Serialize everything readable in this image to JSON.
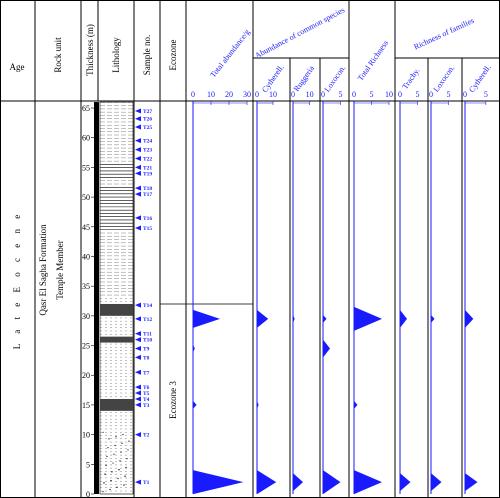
{
  "headers": {
    "age": "Age",
    "rock_unit": "Rock unit",
    "thickness": "Thickness (m)",
    "lithology": "Lithology",
    "sample_no": "Sample no.",
    "ecozone": "Ecozone",
    "total_abundance": "Total abundance/g",
    "abundance_common": "Abundance of common species",
    "cytherell_a": "Cytherell.",
    "ruggeria": "Ruggeria",
    "loxocon_a": "Loxocon.",
    "total_richness": "Total Richness",
    "richness_families": "Richness of families",
    "trachy": "Trachy.",
    "loxocon_b": "Loxocon.",
    "cytherell_b": "Cytherell."
  },
  "column_labels": {
    "age_value": "L a t e   E o c e n e",
    "formation": "Qasr El Sagha Formation",
    "member": "Temple Member",
    "ecozone_value": "Ecozone 3"
  },
  "colors": {
    "blue": "#1a1aff",
    "black": "#000000"
  },
  "chart_data": {
    "type": "area",
    "title": "",
    "y_axis": {
      "label": "Thickness (m)",
      "range": [
        0,
        66
      ],
      "ticks": [
        0,
        5,
        10,
        15,
        20,
        25,
        30,
        35,
        40,
        45,
        50,
        55,
        60,
        65
      ]
    },
    "samples": [
      {
        "id": "T1",
        "depth": 2
      },
      {
        "id": "T2",
        "depth": 10
      },
      {
        "id": "T3",
        "depth": 15
      },
      {
        "id": "T4",
        "depth": 16
      },
      {
        "id": "T5",
        "depth": 17
      },
      {
        "id": "T6",
        "depth": 18
      },
      {
        "id": "T7",
        "depth": 20.5
      },
      {
        "id": "T8",
        "depth": 23
      },
      {
        "id": "T9",
        "depth": 24.5
      },
      {
        "id": "T10",
        "depth": 26
      },
      {
        "id": "T11",
        "depth": 27
      },
      {
        "id": "T12",
        "depth": 29.5
      },
      {
        "id": "T14",
        "depth": 31.8
      },
      {
        "id": "T15",
        "depth": 44.8
      },
      {
        "id": "T16",
        "depth": 46.5
      },
      {
        "id": "T17",
        "depth": 50.5
      },
      {
        "id": "T18",
        "depth": 51.5
      },
      {
        "id": "T19",
        "depth": 54
      },
      {
        "id": "T21",
        "depth": 55
      },
      {
        "id": "T22",
        "depth": 56.5
      },
      {
        "id": "T23",
        "depth": 58
      },
      {
        "id": "T24",
        "depth": 59.5
      },
      {
        "id": "T25",
        "depth": 61.8
      },
      {
        "id": "T26",
        "depth": 63.2
      },
      {
        "id": "T27",
        "depth": 64.5
      }
    ],
    "ecozone_boundary_depth": 32,
    "series": [
      {
        "key": "total_abundance",
        "axis_ticks": [
          0,
          10,
          20,
          30
        ],
        "xmax": 30,
        "values": [
          28,
          0,
          2,
          0,
          0,
          0,
          0,
          0,
          1,
          0,
          0,
          15,
          0,
          0,
          0,
          0,
          0,
          0,
          0,
          0,
          0,
          0,
          0,
          0,
          0
        ]
      },
      {
        "key": "cytherell_a",
        "axis_ticks": [
          0,
          10
        ],
        "xmax": 15,
        "values": [
          12,
          0,
          1,
          0,
          0,
          0,
          0,
          0,
          0,
          0,
          0,
          7,
          0,
          0,
          0,
          0,
          0,
          0,
          0,
          0,
          0,
          0,
          0,
          0,
          0
        ]
      },
      {
        "key": "ruggeria",
        "axis_ticks": [
          0,
          10
        ],
        "xmax": 12,
        "values": [
          6,
          0,
          0,
          0,
          0,
          0,
          0,
          0,
          0,
          0,
          0,
          1,
          0,
          0,
          0,
          0,
          0,
          0,
          0,
          0,
          0,
          0,
          0,
          0,
          0
        ]
      },
      {
        "key": "loxocon_a",
        "axis_ticks": [
          0,
          5
        ],
        "xmax": 6,
        "values": [
          5,
          0,
          0,
          0,
          0,
          0,
          0,
          0,
          2,
          0,
          0,
          1,
          0,
          0,
          0,
          0,
          0,
          0,
          0,
          0,
          0,
          0,
          0,
          0,
          0
        ]
      },
      {
        "key": "total_richness",
        "axis_ticks": [
          0,
          5,
          10
        ],
        "xmax": 10,
        "values": [
          8,
          0,
          1,
          0,
          0,
          0,
          0,
          0,
          0,
          0,
          0,
          8,
          0,
          0,
          0,
          0,
          0,
          0,
          0,
          0,
          0,
          0,
          0,
          0,
          0
        ]
      },
      {
        "key": "trachy",
        "axis_ticks": [
          0,
          5
        ],
        "xmax": 6,
        "values": [
          3,
          0,
          0,
          0,
          0,
          0,
          0,
          0,
          0,
          0,
          0,
          2,
          0,
          0,
          0,
          0,
          0,
          0,
          0,
          0,
          0,
          0,
          0,
          0,
          0
        ]
      },
      {
        "key": "loxocon_b",
        "axis_ticks": [
          0,
          5
        ],
        "xmax": 6,
        "values": [
          3,
          0,
          0,
          0,
          0,
          0,
          0,
          0,
          0,
          0,
          0,
          1,
          0,
          0,
          0,
          0,
          0,
          0,
          0,
          0,
          0,
          0,
          0,
          0,
          0
        ]
      },
      {
        "key": "cytherell_b",
        "axis_ticks": [
          0,
          5
        ],
        "xmax": 6,
        "values": [
          3,
          0,
          0,
          0,
          0,
          0,
          0,
          0,
          0,
          0,
          0,
          2,
          0,
          0,
          0,
          0,
          0,
          0,
          0,
          0,
          0,
          0,
          0,
          0,
          0
        ]
      }
    ]
  }
}
